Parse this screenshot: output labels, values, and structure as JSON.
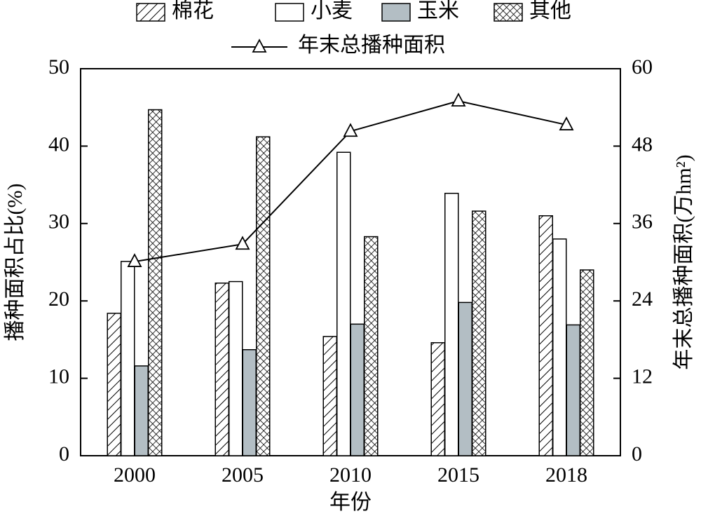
{
  "chart_data": {
    "type": "bar",
    "x_label": "年份",
    "y_label": "播种面积占比(%)",
    "y2_label": "年末总播种面积(万hm²)",
    "categories": [
      "2000",
      "2005",
      "2010",
      "2015",
      "2018"
    ],
    "series": [
      {
        "name": "棉花",
        "color": "#ffffff",
        "hatch": "diagonal",
        "values": [
          18.4,
          22.3,
          15.4,
          14.6,
          31.0
        ]
      },
      {
        "name": "小麦",
        "color": "#ffffff",
        "values": [
          25.1,
          22.5,
          39.2,
          33.9,
          28.0
        ]
      },
      {
        "name": "玉米",
        "color": "#b3bec4",
        "values": [
          11.6,
          13.7,
          17.0,
          19.8,
          16.9
        ]
      },
      {
        "name": "其他",
        "color": "#ffffff",
        "hatch": "crosshatch",
        "values": [
          44.7,
          41.2,
          28.3,
          31.6,
          24.0
        ]
      },
      {
        "name": "年末总播种面积",
        "type": "line",
        "axis": "y2",
        "marker": "triangle",
        "color": "#000000",
        "values": [
          30.1,
          32.8,
          50.3,
          55.0,
          51.3
        ]
      }
    ],
    "ylim": [
      0,
      50
    ],
    "yticks": [
      0,
      10,
      20,
      30,
      40,
      50
    ],
    "y2lim": [
      0,
      60
    ],
    "y2ticks": [
      0,
      12,
      24,
      36,
      48,
      60
    ]
  }
}
